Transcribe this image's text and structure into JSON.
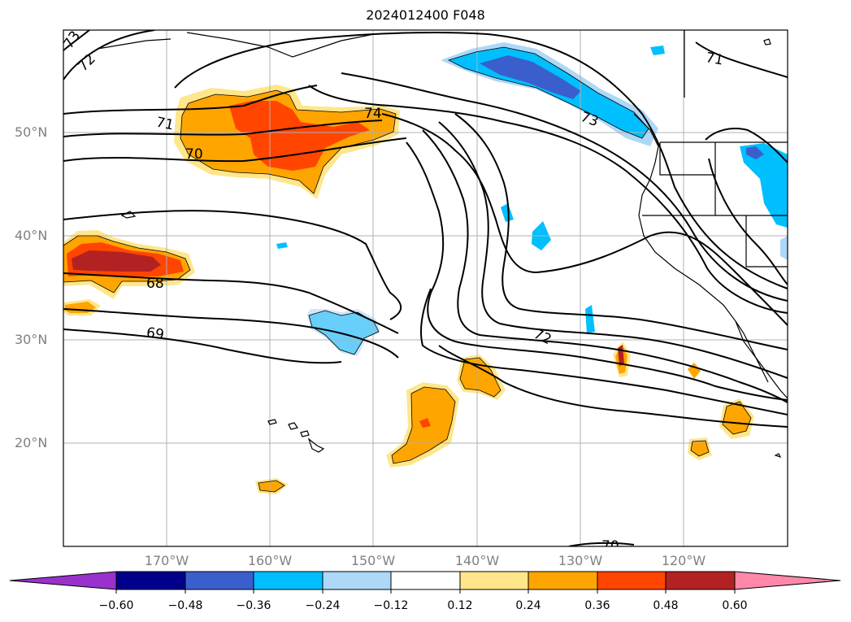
{
  "title": "2024012400 F048",
  "lat_labels": [
    "50°N",
    "40°N",
    "30°N",
    "20°N"
  ],
  "lon_labels": [
    "170°W",
    "160°W",
    "150°W",
    "140°W",
    "130°W",
    "120°W"
  ],
  "contour_labels": [
    "73",
    "72",
    "71",
    "70",
    "74",
    "73",
    "71",
    "68",
    "69",
    "72",
    "70"
  ],
  "colorbar": {
    "ticks": [
      "−0.60",
      "−0.48",
      "−0.36",
      "−0.24",
      "−0.12",
      "0.12",
      "0.24",
      "0.36",
      "0.48",
      "0.60"
    ],
    "colors": [
      "#9932CC",
      "#00008B",
      "#3A5FCD",
      "#00BFFF",
      "#ADD8F7",
      "#FFFFFF",
      "#FFE68A",
      "#FFA500",
      "#FF4500",
      "#B22222",
      "#FF88AA"
    ]
  },
  "colors": {
    "orange": "#FFA500",
    "red_orange": "#FF4500",
    "dark_red": "#B22222",
    "light_yellow": "#FFE68A",
    "blue": "#00BFFF",
    "royal_blue": "#3A5FCD",
    "light_blue": "#ADD8F7",
    "grid": "#B0B0B0",
    "label_gray": "#808080"
  }
}
